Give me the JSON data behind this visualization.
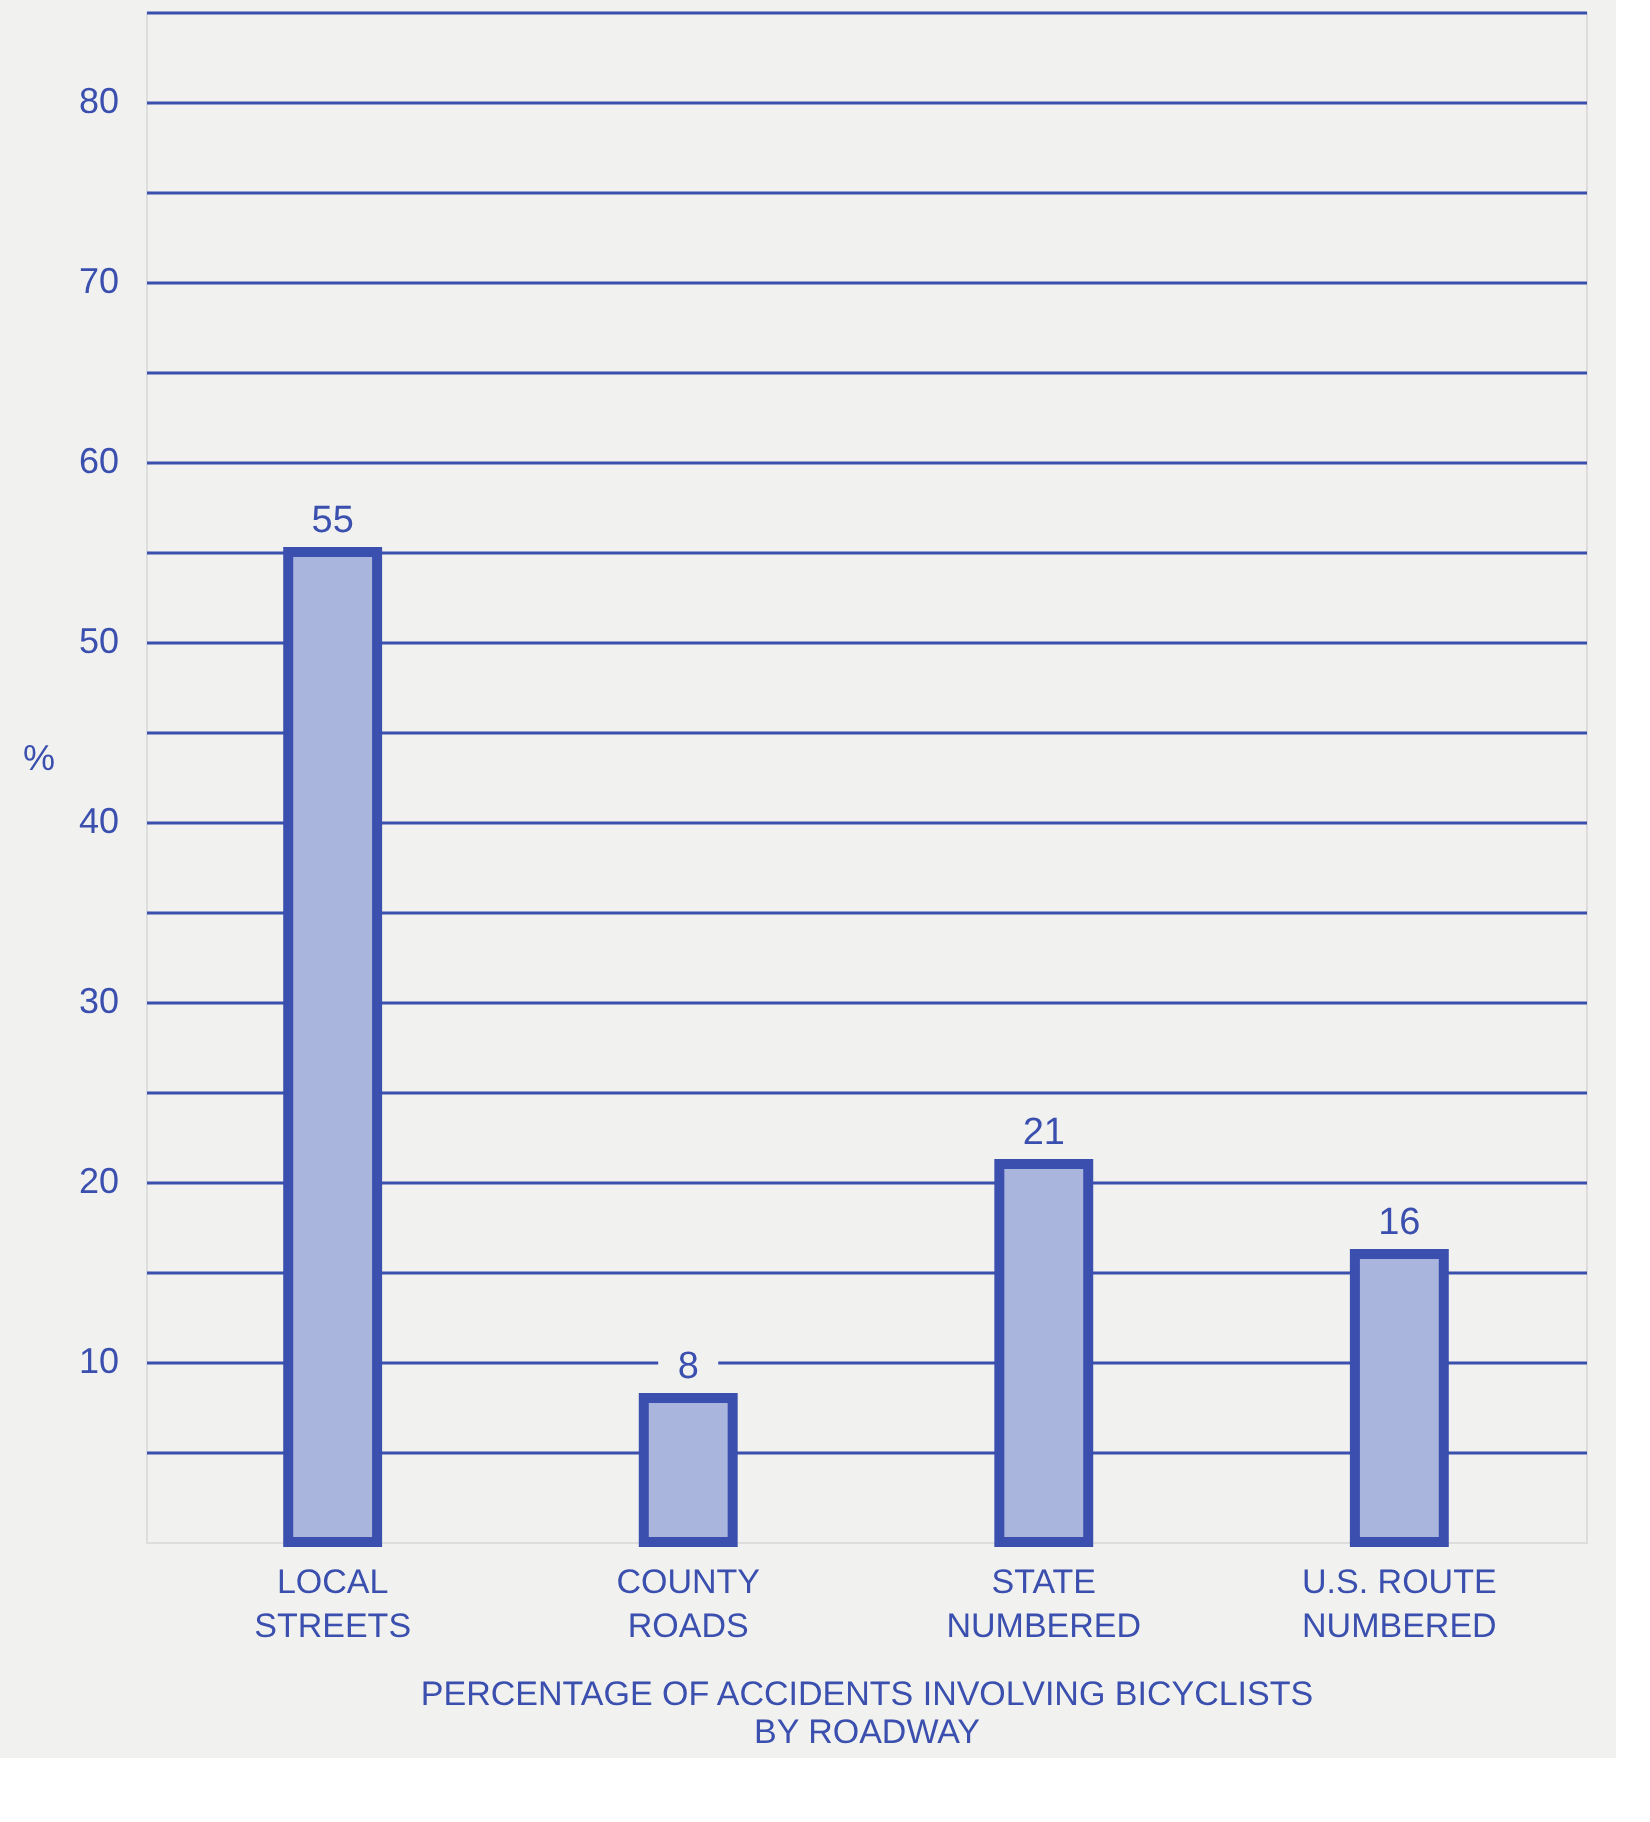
{
  "chart_data": {
    "type": "bar",
    "categories": [
      "LOCAL\nSTREETS",
      "COUNTY\nROADS",
      "STATE\nNUMBERED",
      "U.S.  ROUTE\nNUMBERED"
    ],
    "values": [
      55,
      8,
      21,
      16
    ],
    "color": "#aab5dd",
    "xlabel": "PERCENTAGE OF ACCIDENTS INVOLVING BICYCLISTS\nBY ROADWAY",
    "ylabel": "%",
    "ylim": [
      0,
      85
    ],
    "yticks": [
      {
        "value": 5,
        "label": null
      },
      10,
      {
        "value": 15,
        "label": null
      },
      20,
      {
        "value": 25,
        "label": null
      },
      30,
      {
        "value": 35,
        "label": null
      },
      40,
      {
        "value": 45,
        "label": null
      },
      50,
      {
        "value": 55,
        "label": null
      },
      60,
      {
        "value": 65,
        "label": null
      },
      70,
      {
        "value": 75,
        "label": null
      },
      80,
      {
        "value": 85,
        "label": null
      }
    ],
    "grid": "y",
    "data_labels": true
  }
}
